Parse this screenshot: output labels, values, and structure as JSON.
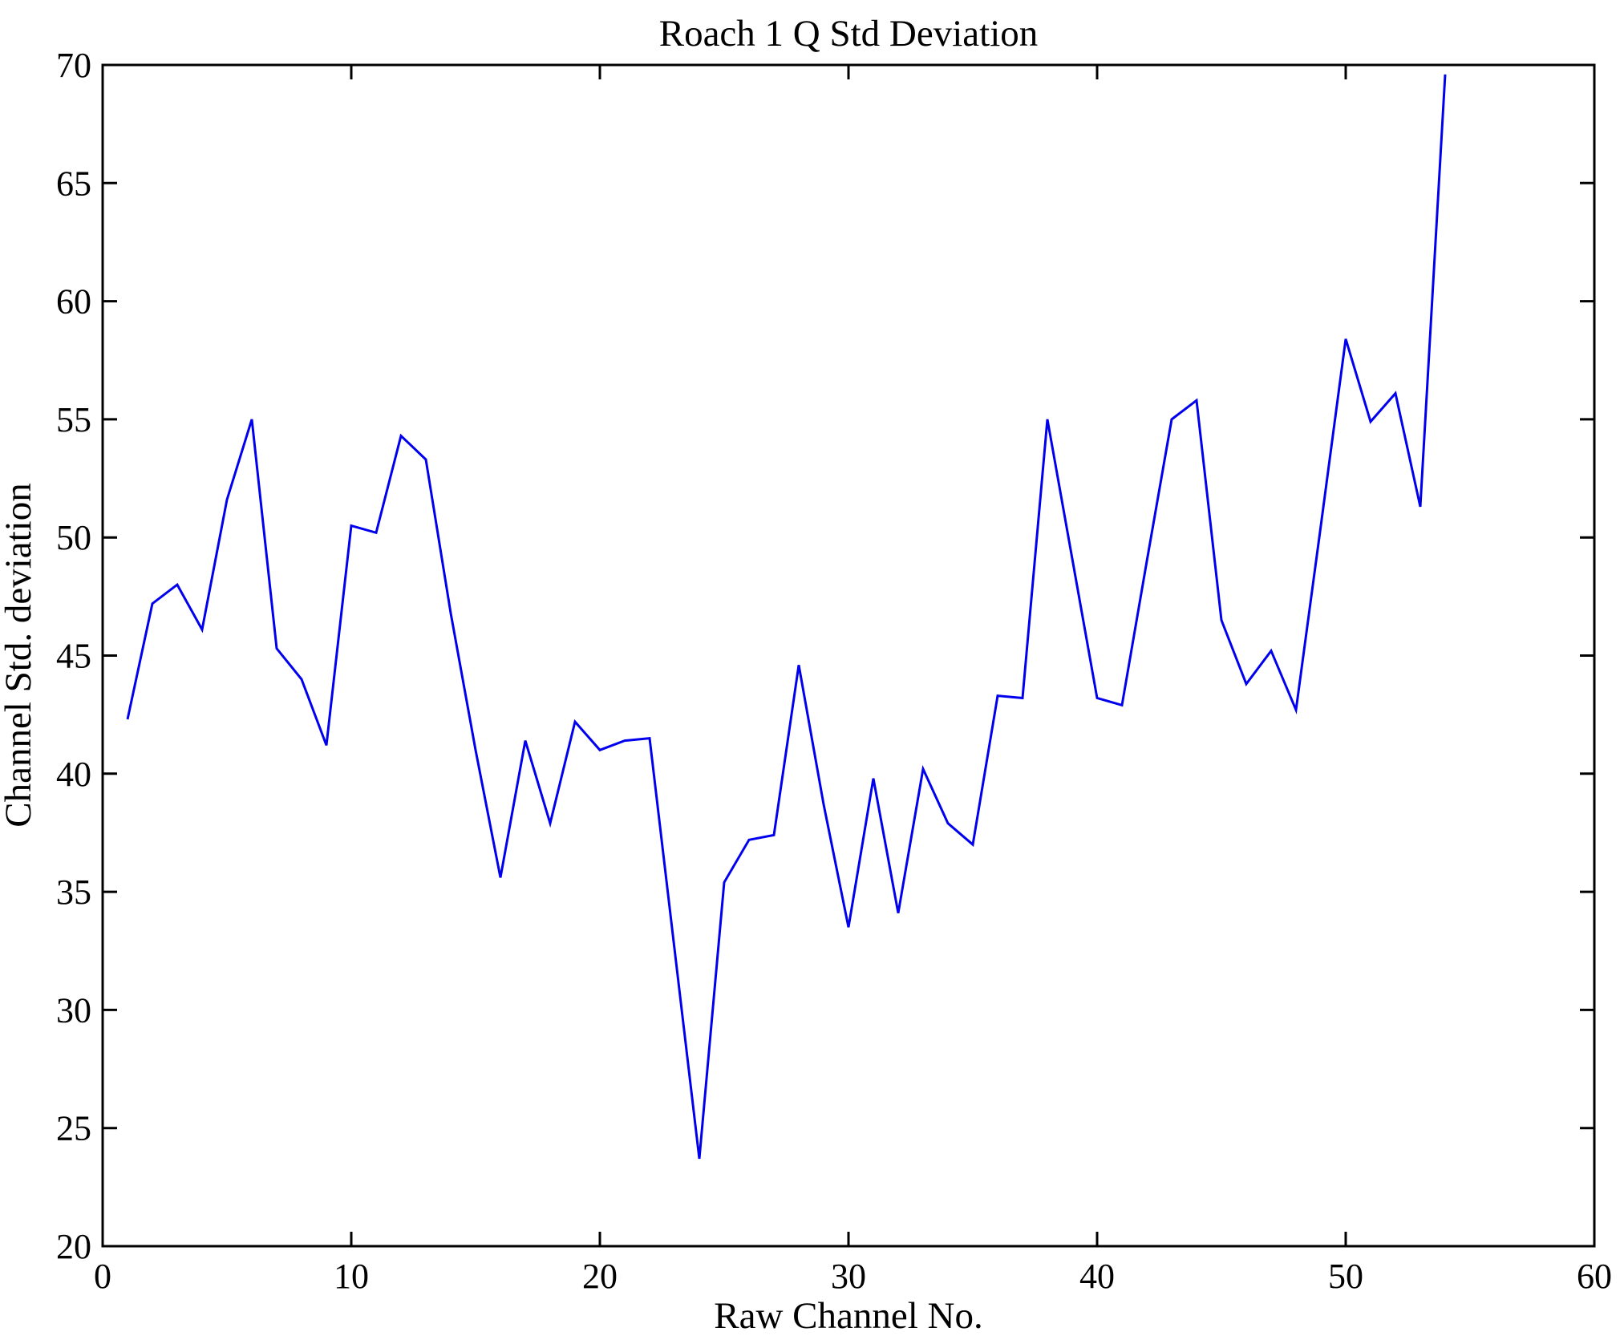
{
  "figure": {
    "title": "Roach 1 Q Std Deviation",
    "xlabel": "Raw Channel No.",
    "ylabel": "Channel Std. deviation"
  },
  "chart_data": {
    "type": "line",
    "title": "Roach 1 Q Std Deviation",
    "xlabel": "Raw Channel No.",
    "ylabel": "Channel Std. deviation",
    "x": [
      1,
      2,
      3,
      4,
      5,
      6,
      7,
      8,
      9,
      10,
      11,
      12,
      13,
      14,
      15,
      16,
      17,
      18,
      19,
      20,
      21,
      22,
      23,
      24,
      25,
      26,
      27,
      28,
      29,
      30,
      31,
      32,
      33,
      34,
      35,
      36,
      37,
      38,
      39,
      40,
      41,
      42,
      43,
      44,
      45,
      46,
      47,
      48,
      49,
      50,
      51,
      52,
      53,
      54
    ],
    "values": [
      42.3,
      47.2,
      48.0,
      46.1,
      51.6,
      55.0,
      45.3,
      44.0,
      41.2,
      50.5,
      50.2,
      54.3,
      53.3,
      46.8,
      41.0,
      35.6,
      41.4,
      37.9,
      42.2,
      41.0,
      41.4,
      41.5,
      32.6,
      23.7,
      35.4,
      37.2,
      37.4,
      44.6,
      38.7,
      33.5,
      39.8,
      34.1,
      40.2,
      37.9,
      37.0,
      43.3,
      43.2,
      55.0,
      49.1,
      43.2,
      42.9,
      49.0,
      55.0,
      55.8,
      46.5,
      43.8,
      45.2,
      42.7,
      50.5,
      58.4,
      54.9,
      56.1,
      51.3,
      69.6
    ],
    "xlim": [
      0,
      60
    ],
    "ylim": [
      20,
      70
    ],
    "xticks": [
      0,
      10,
      20,
      30,
      40,
      50,
      60
    ],
    "yticks": [
      20,
      25,
      30,
      35,
      40,
      45,
      50,
      55,
      60,
      65,
      70
    ],
    "grid": false,
    "legend_position": "none",
    "line_color": "#0000EE",
    "axis_color": "#000000"
  }
}
